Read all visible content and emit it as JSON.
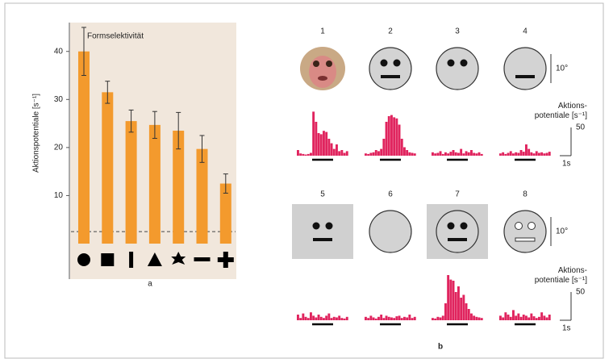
{
  "chart_data": [
    {
      "type": "bar",
      "title": "Formselektivität",
      "y_label": "Aktionspotentiale [s⁻¹]",
      "categories": [
        null,
        null,
        null,
        null,
        null,
        null,
        null
      ],
      "values": [
        40,
        31.5,
        25.5,
        24.7,
        23.5,
        19.7,
        12.5
      ],
      "errors": [
        5,
        2.3,
        2.3,
        2.8,
        3.8,
        2.8,
        2
      ],
      "color": "#f39a2d",
      "reference_line": 2.5,
      "ylim": [
        0,
        46
      ],
      "yticks": [
        10,
        20,
        30,
        40
      ],
      "panel_label": "a"
    },
    {
      "type": "histogram",
      "color": "#e0245e",
      "panel_label": "b",
      "size_label": "10°",
      "rate_label": "Aktions-\npotentiale [s⁻¹]",
      "scale_value": 50,
      "time_label": "1s",
      "stimuli": [
        {
          "label": "1",
          "values": [
            10,
            4,
            3,
            2,
            3,
            5,
            78,
            60,
            40,
            38,
            44,
            42,
            30,
            22,
            12,
            20,
            8,
            10,
            5,
            8
          ]
        },
        {
          "label": "2",
          "values": [
            4,
            3,
            5,
            6,
            10,
            8,
            12,
            30,
            60,
            70,
            72,
            68,
            66,
            55,
            30,
            15,
            10,
            6,
            5,
            4
          ]
        },
        {
          "label": "3",
          "values": [
            6,
            4,
            5,
            8,
            3,
            6,
            4,
            7,
            10,
            6,
            5,
            12,
            4,
            8,
            6,
            10,
            5,
            4,
            6,
            3
          ]
        },
        {
          "label": "4",
          "values": [
            4,
            6,
            3,
            5,
            8,
            4,
            6,
            5,
            10,
            7,
            20,
            12,
            6,
            4,
            8,
            5,
            6,
            4,
            5,
            7
          ]
        },
        {
          "label": "5",
          "values": [
            10,
            4,
            12,
            6,
            4,
            14,
            8,
            5,
            10,
            6,
            4,
            8,
            12,
            4,
            6,
            5,
            8,
            4,
            3,
            6
          ]
        },
        {
          "label": "6",
          "values": [
            6,
            4,
            8,
            5,
            3,
            6,
            10,
            4,
            8,
            6,
            5,
            4,
            7,
            8,
            4,
            6,
            5,
            10,
            4,
            6
          ]
        },
        {
          "label": "7",
          "values": [
            4,
            3,
            6,
            5,
            8,
            30,
            80,
            72,
            70,
            50,
            60,
            40,
            45,
            30,
            20,
            12,
            8,
            6,
            5,
            4
          ]
        },
        {
          "label": "8",
          "values": [
            8,
            5,
            14,
            10,
            6,
            18,
            8,
            12,
            6,
            10,
            8,
            5,
            12,
            7,
            4,
            6,
            14,
            8,
            5,
            10
          ]
        }
      ]
    }
  ]
}
